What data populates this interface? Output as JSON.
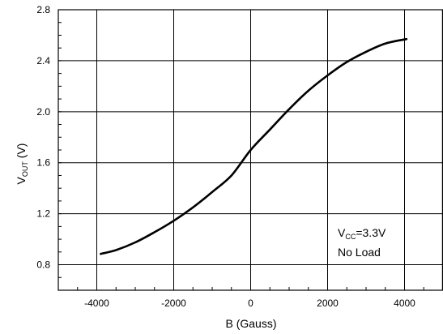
{
  "chart_data": {
    "type": "line",
    "xlabel": "B (Gauss)",
    "ylabel": {
      "main": "V",
      "sub": "OUT",
      "unit": " (V)"
    },
    "xlim": [
      -5000,
      5000
    ],
    "ylim": [
      0.6,
      2.8
    ],
    "x_ticks": [
      -4000,
      -2000,
      0,
      2000,
      4000
    ],
    "y_ticks": [
      0.8,
      1.2,
      1.6,
      2.0,
      2.4,
      2.8
    ],
    "x_tick_labels": [
      "-4000",
      "-2000",
      "0",
      "2000",
      "4000"
    ],
    "y_tick_labels": [
      "0.8",
      "1.2",
      "1.6",
      "2.0",
      "2.4",
      "2.8"
    ],
    "grid": true,
    "series": [
      {
        "x": [
          -3900,
          -3500,
          -3000,
          -2500,
          -2000,
          -1500,
          -1000,
          -500,
          0,
          500,
          1000,
          1500,
          2000,
          2500,
          3000,
          3500,
          4050
        ],
        "y": [
          0.885,
          0.915,
          0.975,
          1.055,
          1.145,
          1.25,
          1.37,
          1.5,
          1.7,
          1.86,
          2.02,
          2.165,
          2.285,
          2.39,
          2.47,
          2.535,
          2.57
        ]
      }
    ],
    "annotation": {
      "line1_main": "V",
      "line1_sub": "CC",
      "line1_rest": "=3.3V",
      "line2": "No Load"
    }
  }
}
